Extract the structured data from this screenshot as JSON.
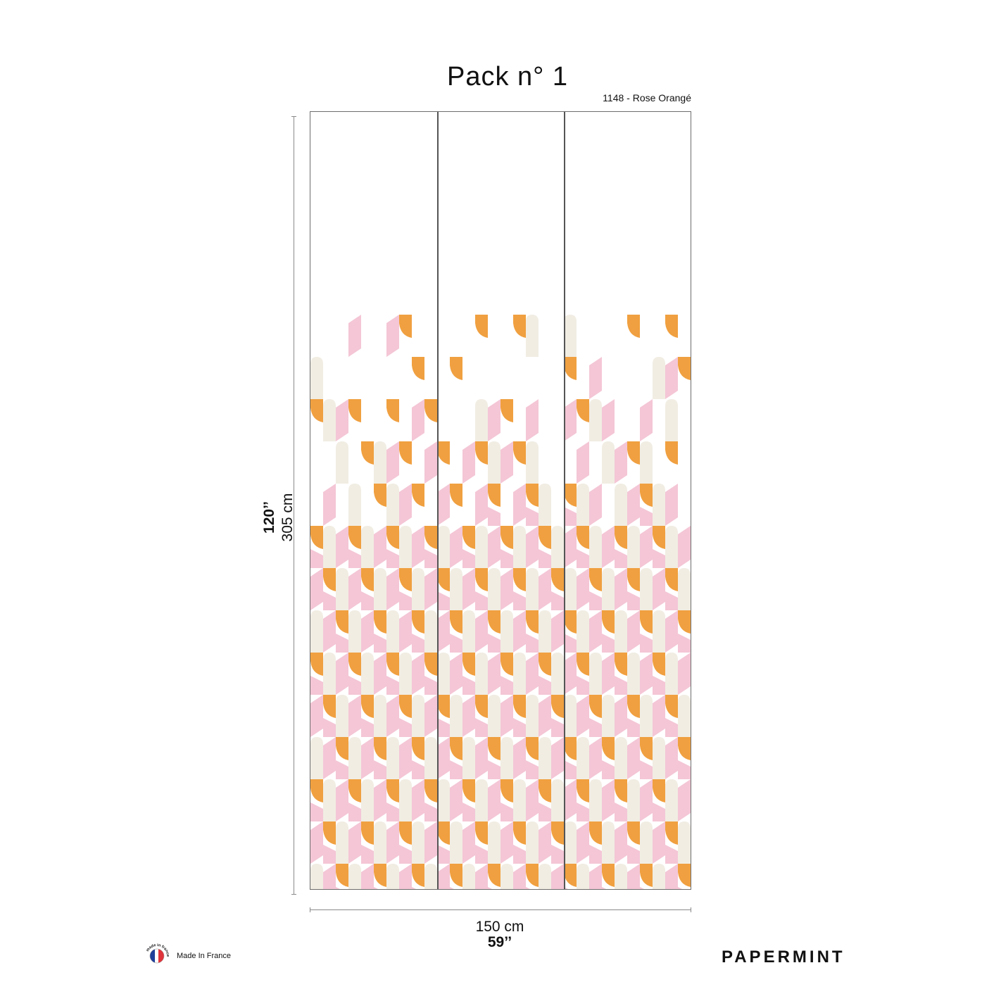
{
  "title": "Pack n° 1",
  "reference": "1148 - Rose Orangé",
  "dimensions": {
    "height_cm": "305 cm",
    "height_in": "120’’",
    "width_cm": "150 cm",
    "width_in": "59’’"
  },
  "footer": {
    "made_in": "Made In France",
    "badge_text": "made in france",
    "brand": "PAPERMINT"
  },
  "colors": {
    "orange": "#F0A040",
    "pink": "#F4C6D6",
    "cream": "#F1EDE3",
    "background": "#FFFFFF",
    "flag_blue": "#1F3F9A",
    "flag_red": "#E0343C"
  },
  "panels": 3
}
